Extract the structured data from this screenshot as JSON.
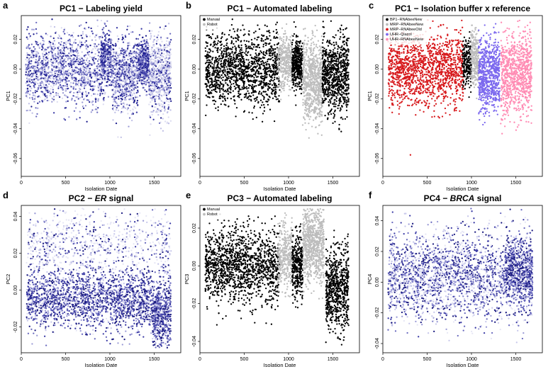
{
  "chart_data": [
    {
      "letter": "a",
      "type": "scatter",
      "title": "PC1 − Labeling yield",
      "xlabel": "Isolation Date",
      "ylabel": "PC1",
      "xlim": [
        0,
        1800
      ],
      "ylim": [
        -0.072,
        0.036
      ],
      "xticks": [
        0,
        500,
        1000,
        1500
      ],
      "yticks": [
        -0.06,
        -0.04,
        -0.02,
        0.0,
        0.02
      ],
      "ytick_labels": [
        "-0.06",
        "-0.04",
        "-0.02",
        "0.00",
        "0.02"
      ],
      "colors": [
        "#dcdcf0",
        "#c0c0e6",
        "#9b9bd6",
        "#6b6bbf",
        "#3c3ca6",
        "#1c1c8c"
      ],
      "clusters": [
        {
          "x": [
            50,
            950
          ],
          "y_mean": 0.0,
          "y_sd": 0.012,
          "n": 1500,
          "color_bias": "mixed"
        },
        {
          "x": [
            900,
            1020
          ],
          "y_mean": 0.008,
          "y_sd": 0.008,
          "n": 300,
          "color_bias": "dark"
        },
        {
          "x": [
            1020,
            1320
          ],
          "y_mean": -0.005,
          "y_sd": 0.012,
          "n": 700,
          "color_bias": "mixed"
        },
        {
          "x": [
            1320,
            1440
          ],
          "y_mean": 0.004,
          "y_sd": 0.007,
          "n": 500,
          "color_bias": "dark"
        },
        {
          "x": [
            1440,
            1690
          ],
          "y_mean": -0.005,
          "y_sd": 0.013,
          "n": 700,
          "color_bias": "light"
        }
      ]
    },
    {
      "letter": "b",
      "type": "scatter",
      "title": "PC1 − Automated labeling",
      "xlabel": "Isolation Date",
      "ylabel": "PC1",
      "xlim": [
        0,
        1800
      ],
      "ylim": [
        -0.072,
        0.036
      ],
      "xticks": [
        0,
        500,
        1000,
        1500
      ],
      "yticks": [
        -0.06,
        -0.04,
        -0.02,
        0.0,
        0.02
      ],
      "ytick_labels": [
        "-0.06",
        "-0.04",
        "-0.02",
        "0.00",
        "0.02"
      ],
      "legend": [
        {
          "label": "Manual",
          "color": "#000000"
        },
        {
          "label": "Robot",
          "color": "#bdbdbd"
        }
      ],
      "clusters": [
        {
          "x": [
            60,
            900
          ],
          "y_mean": 0.0,
          "y_sd": 0.012,
          "n": 1400,
          "series": 0
        },
        {
          "x": [
            880,
            1040
          ],
          "y_mean": 0.005,
          "y_sd": 0.009,
          "n": 350,
          "series": 1
        },
        {
          "x": [
            1040,
            1160
          ],
          "y_mean": 0.003,
          "y_sd": 0.008,
          "n": 400,
          "series": 0
        },
        {
          "x": [
            1160,
            1380
          ],
          "y_mean": -0.008,
          "y_sd": 0.013,
          "n": 700,
          "series": 1
        },
        {
          "x": [
            1380,
            1680
          ],
          "y_mean": -0.004,
          "y_sd": 0.013,
          "n": 800,
          "series": 0
        }
      ]
    },
    {
      "letter": "c",
      "type": "scatter",
      "title": "PC1 − Isolation buffer x reference",
      "xlabel": "Isolation Date",
      "ylabel": "PC1",
      "xlim": [
        0,
        1800
      ],
      "ylim": [
        -0.072,
        0.036
      ],
      "xticks": [
        0,
        500,
        1000,
        1500
      ],
      "yticks": [
        -0.06,
        -0.04,
        -0.02,
        0.0,
        0.02
      ],
      "ytick_labels": [
        "-0.06",
        "-0.04",
        "-0.02",
        "0.00",
        "0.02"
      ],
      "legend": [
        {
          "label": "BP1−RNAbeeNew",
          "color": "#000000"
        },
        {
          "label": "MRP−RNAbeeNew",
          "color": "#bdbdbd"
        },
        {
          "label": "MRP−RNAbeeOld",
          "color": "#d7191c"
        },
        {
          "label": "UHR−Qiazol",
          "color": "#7b68ee"
        },
        {
          "label": "UHR−RNAbeeNew",
          "color": "#ff8cb4"
        }
      ],
      "clusters": [
        {
          "x": [
            60,
            910
          ],
          "y_mean": 0.0,
          "y_sd": 0.012,
          "n": 1400,
          "series": 2
        },
        {
          "x": [
            900,
            1000
          ],
          "y_mean": 0.005,
          "y_sd": 0.008,
          "n": 200,
          "series": 0
        },
        {
          "x": [
            990,
            1080
          ],
          "y_mean": 0.008,
          "y_sd": 0.009,
          "n": 250,
          "series": 1
        },
        {
          "x": [
            1080,
            1320
          ],
          "y_mean": -0.003,
          "y_sd": 0.012,
          "n": 700,
          "series": 3
        },
        {
          "x": [
            1330,
            1680
          ],
          "y_mean": -0.004,
          "y_sd": 0.013,
          "n": 900,
          "series": 4
        }
      ]
    },
    {
      "letter": "d",
      "type": "scatter",
      "title_parts": [
        "PC2 − ",
        "ER",
        " signal"
      ],
      "xlabel": "Isolation Date",
      "ylabel": "PC2",
      "xlim": [
        0,
        1800
      ],
      "ylim": [
        -0.034,
        0.046
      ],
      "xticks": [
        0,
        500,
        1000,
        1500
      ],
      "yticks": [
        -0.02,
        0.0,
        0.02,
        0.04
      ],
      "ytick_labels": [
        "-0.02",
        "0.00",
        "0.02",
        "0.04"
      ],
      "colors": [
        "#e6e6f5",
        "#c8c8eb",
        "#9b9bd6",
        "#6b6bbf",
        "#3c3ca6",
        "#1a1a80"
      ],
      "clusters": [
        {
          "x": [
            60,
            1690
          ],
          "y_mean": 0.025,
          "y_sd": 0.009,
          "n": 800,
          "color_bias": "light"
        },
        {
          "x": [
            60,
            1480
          ],
          "y_mean": -0.005,
          "y_sd": 0.008,
          "n": 2000,
          "color_bias": "dark"
        },
        {
          "x": [
            1480,
            1690
          ],
          "y_mean": -0.012,
          "y_sd": 0.009,
          "n": 600,
          "color_bias": "dark"
        }
      ]
    },
    {
      "letter": "e",
      "type": "scatter",
      "title": "PC3 − Automated labeling",
      "xlabel": "Isolation Date",
      "ylabel": "PC3",
      "xlim": [
        0,
        1800
      ],
      "ylim": [
        -0.046,
        0.032
      ],
      "xticks": [
        0,
        500,
        1000,
        1500
      ],
      "yticks": [
        -0.04,
        -0.02,
        0.0,
        0.02
      ],
      "ytick_labels": [
        "-0.04",
        "-0.02",
        "0.00",
        "0.02"
      ],
      "legend": [
        {
          "label": "Manual",
          "color": "#000000"
        },
        {
          "label": "Robot",
          "color": "#bdbdbd"
        }
      ],
      "clusters": [
        {
          "x": [
            60,
            900
          ],
          "y_mean": 0.0,
          "y_sd": 0.01,
          "n": 1400,
          "series": 0
        },
        {
          "x": [
            880,
            1040
          ],
          "y_mean": 0.005,
          "y_sd": 0.009,
          "n": 350,
          "series": 1
        },
        {
          "x": [
            1040,
            1160
          ],
          "y_mean": 0.0,
          "y_sd": 0.008,
          "n": 350,
          "series": 0
        },
        {
          "x": [
            1160,
            1400
          ],
          "y_mean": 0.012,
          "y_sd": 0.01,
          "n": 800,
          "series": 1
        },
        {
          "x": [
            1420,
            1680
          ],
          "y_mean": -0.012,
          "y_sd": 0.011,
          "n": 700,
          "series": 0
        }
      ]
    },
    {
      "letter": "f",
      "type": "scatter",
      "title_parts": [
        "PC4 − ",
        "BRCA",
        " signal"
      ],
      "xlabel": "Isolation Date",
      "ylabel": "PC4",
      "xlim": [
        0,
        1800
      ],
      "ylim": [
        -0.046,
        0.05
      ],
      "xticks": [
        0,
        500,
        1000,
        1500
      ],
      "yticks": [
        -0.04,
        -0.02,
        0.0,
        0.02,
        0.04
      ],
      "ytick_labels": [
        "-0.04",
        "-0.02",
        "0.00",
        "0.02",
        "0.04"
      ],
      "colors": [
        "#e6e6f5",
        "#c8c8eb",
        "#9b9bd6",
        "#6b6bbf",
        "#3c3ca6",
        "#1a1a80"
      ],
      "clusters": [
        {
          "x": [
            60,
            1690
          ],
          "y_mean": 0.004,
          "y_sd": 0.014,
          "n": 2500,
          "color_bias": "mixed"
        },
        {
          "x": [
            1380,
            1690
          ],
          "y_mean": 0.008,
          "y_sd": 0.011,
          "n": 500,
          "color_bias": "dark"
        }
      ]
    }
  ]
}
